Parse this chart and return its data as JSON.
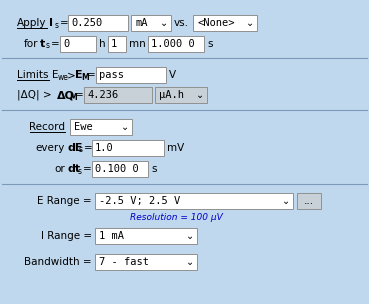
{
  "panel_bg": "#c0d8ee",
  "white": "#ffffff",
  "gray_box": "#c8d0d8",
  "light_blue": "#b8cfe0",
  "separator_color": "#7a9ab8",
  "apply_field": "0.250",
  "apply_unit": "mA",
  "apply_vs": "vs.",
  "apply_vs_dd": "<None>",
  "for_h": "0",
  "for_mn": "1",
  "for_s": "1.000 0",
  "limits_field1": "pass",
  "limits_unit1": "V",
  "limits_field2": "4.236",
  "limits_unit2": "μA.h",
  "record_dd": "Ewe",
  "dE_field": "1.0",
  "dE_unit": "mV",
  "dt_field": "0.100 0",
  "dt_unit": "s",
  "erange_dd": "-2.5 V; 2.5 V",
  "resolution_text": "Resolution = 100 μV",
  "irange_dd": "1 mA",
  "bw_dd": "7 - fast"
}
